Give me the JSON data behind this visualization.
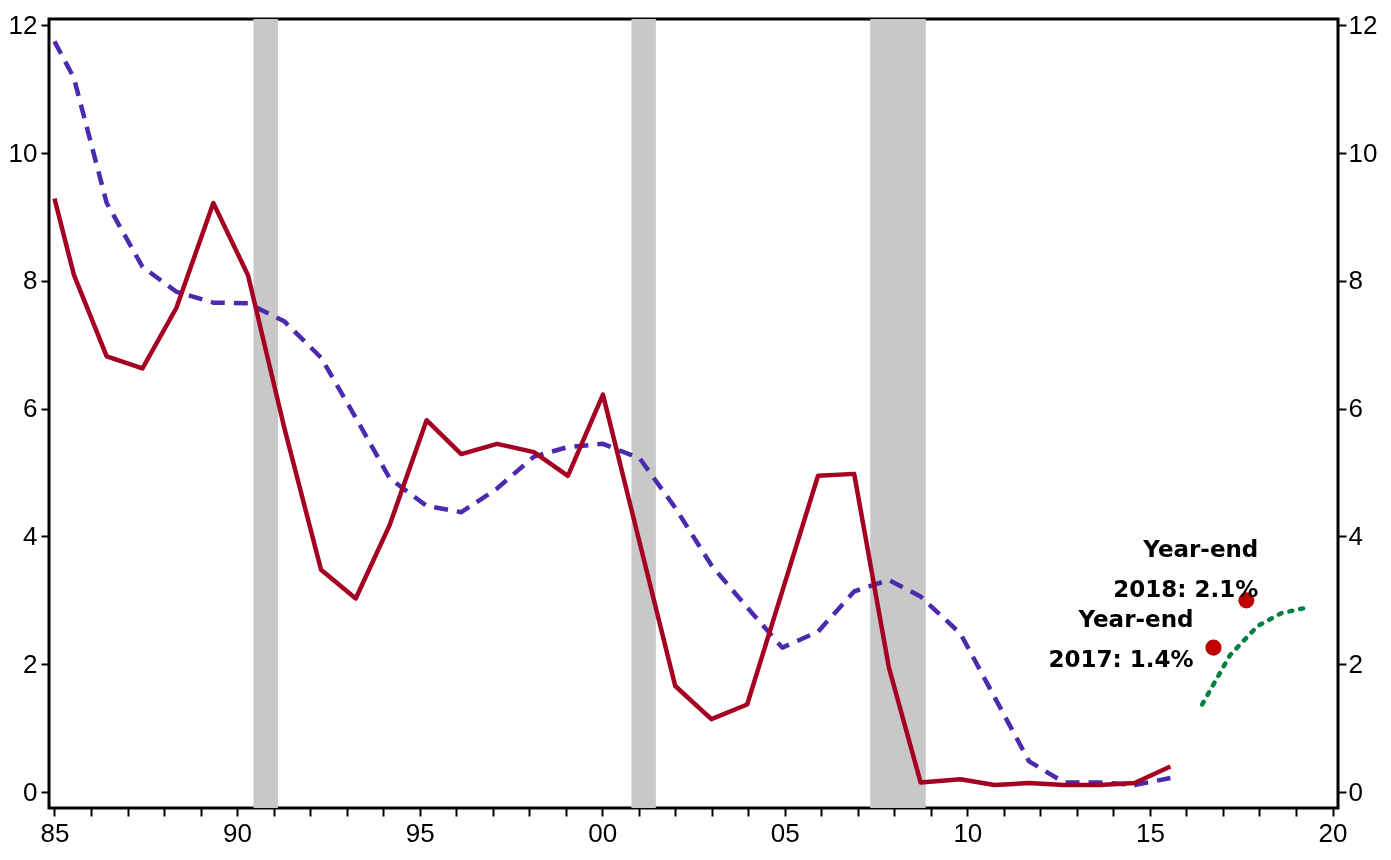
{
  "chart_data": {
    "type": "line",
    "xlim": [
      1984.85,
      2020.15
    ],
    "xticks": [
      {
        "value": 1985,
        "label": "85"
      },
      {
        "value": 1986,
        "label": null
      },
      {
        "value": 1987,
        "label": null
      },
      {
        "value": 1988,
        "label": null
      },
      {
        "value": 1989,
        "label": null
      },
      {
        "value": 1990,
        "label": "90"
      },
      {
        "value": 1991,
        "label": null
      },
      {
        "value": 1992,
        "label": null
      },
      {
        "value": 1993,
        "label": null
      },
      {
        "value": 1994,
        "label": null
      },
      {
        "value": 1995,
        "label": "95"
      },
      {
        "value": 1996,
        "label": null
      },
      {
        "value": 1997,
        "label": null
      },
      {
        "value": 1998,
        "label": null
      },
      {
        "value": 1999,
        "label": null
      },
      {
        "value": 2000,
        "label": "00"
      },
      {
        "value": 2001,
        "label": null
      },
      {
        "value": 2002,
        "label": null
      },
      {
        "value": 2003,
        "label": null
      },
      {
        "value": 2004,
        "label": null
      },
      {
        "value": 2005,
        "label": "05"
      },
      {
        "value": 2006,
        "label": null
      },
      {
        "value": 2007,
        "label": null
      },
      {
        "value": 2008,
        "label": null
      },
      {
        "value": 2009,
        "label": null
      },
      {
        "value": 2010,
        "label": "10"
      },
      {
        "value": 2011,
        "label": null
      },
      {
        "value": 2012,
        "label": null
      },
      {
        "value": 2013,
        "label": null
      },
      {
        "value": 2014,
        "label": null
      },
      {
        "value": 2015,
        "label": "15"
      },
      {
        "value": 2016,
        "label": null
      },
      {
        "value": 2017,
        "label": null
      },
      {
        "value": 2018,
        "label": null
      },
      {
        "value": 2019,
        "label": null
      },
      {
        "value": 2020,
        "label": "20"
      }
    ],
    "ylim": [
      -0.25,
      12.1
    ],
    "yticks": [
      0,
      2,
      4,
      6,
      8,
      10,
      12
    ],
    "y2lim": [
      -0.25,
      12.1
    ],
    "y2ticks": [
      0,
      2,
      4,
      6,
      8,
      10,
      12
    ],
    "grid": false,
    "bands": [
      {
        "axis": "x",
        "from": 1990.45,
        "to": 1991.12,
        "color": "#c8c8c8"
      },
      {
        "axis": "x",
        "from": 2000.8,
        "to": 2001.47,
        "color": "#c8c8c8"
      },
      {
        "axis": "x",
        "from": 2007.34,
        "to": 2008.86,
        "color": "#c8c8c8"
      }
    ],
    "series": [
      {
        "color": "#4b2aad",
        "line_style": "dashed",
        "x": [
          1985,
          1985.53,
          1986.43,
          1987.41,
          1988.34,
          1989.35,
          1990.3,
          1991.29,
          1992.3,
          1993.25,
          1994.18,
          1995.19,
          1996.14,
          1997.12,
          1998.13,
          1999.06,
          2000.02,
          2001.03,
          2002.0,
          2002.99,
          2003.97,
          2004.93,
          2005.91,
          2006.9,
          2007.85,
          2008.72,
          2009.81,
          2010.74,
          2011.69,
          2012.65,
          2013.63,
          2014.58,
          2015.56
        ],
        "values": [
          11.75,
          11.18,
          9.22,
          8.22,
          7.83,
          7.66,
          7.65,
          7.37,
          6.8,
          5.86,
          4.91,
          4.48,
          4.38,
          4.75,
          5.25,
          5.4,
          5.45,
          5.22,
          4.45,
          3.55,
          2.89,
          2.26,
          2.51,
          3.14,
          3.32,
          3.06,
          2.48,
          1.49,
          0.48,
          0.15,
          0.15,
          0.11,
          0.22
        ]
      },
      {
        "color": "#a50021",
        "line_style": "solid",
        "x": [
          1985,
          1985.53,
          1986.43,
          1987.41,
          1988.34,
          1989.35,
          1990.3,
          1991.29,
          1992.3,
          1993.25,
          1994.18,
          1995.19,
          1996.14,
          1997.12,
          1998.13,
          1999.06,
          2000.02,
          2002.0,
          2002.99,
          2003.97,
          2004.93,
          2005.91,
          2006.9,
          2007.85,
          2008.72,
          2009.81,
          2010.74,
          2011.69,
          2012.65,
          2013.63,
          2014.58,
          2015.56
        ],
        "values": [
          9.29,
          8.1,
          6.82,
          6.63,
          7.58,
          9.22,
          8.09,
          5.71,
          3.48,
          3.03,
          4.18,
          5.82,
          5.29,
          5.45,
          5.32,
          4.95,
          6.22,
          1.66,
          1.14,
          1.37,
          3.14,
          4.95,
          4.98,
          1.95,
          0.15,
          0.2,
          0.11,
          0.14,
          0.11,
          0.11,
          0.14,
          0.4
        ]
      },
      {
        "color": "#008040",
        "line_style": "dotted",
        "x": [
          2016.43,
          2017.19,
          2017.95,
          2018.6,
          2019.24
        ],
        "values": [
          1.37,
          2.14,
          2.6,
          2.8,
          2.88
        ]
      },
      {
        "type": "scatter",
        "color": "#c00000",
        "marker": "circle",
        "x": [
          2016.74,
          2017.64
        ],
        "values": [
          2.26,
          3.0
        ]
      }
    ],
    "annotations": [
      {
        "text": "Year-end\n2017: 1.4%",
        "x": 2016.74,
        "y": 2.26
      },
      {
        "text": "Year-end\n2018: 2.1%",
        "x": 2017.64,
        "y": 3.0
      }
    ]
  }
}
